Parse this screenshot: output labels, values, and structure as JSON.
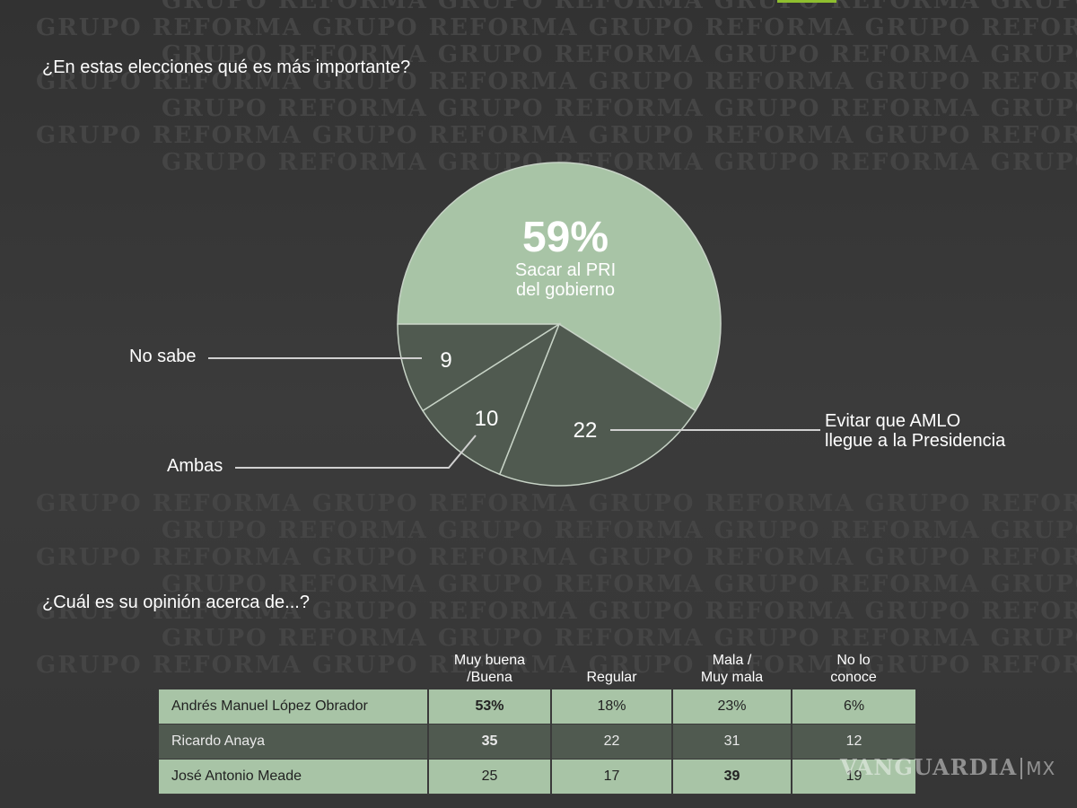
{
  "watermark_text": "GRUPO REFORMA",
  "questions": {
    "q1": "¿En estas elecciones qué es más importante?",
    "q2": "¿Cuál es su opinión acerca de...?"
  },
  "chart_data": [
    {
      "type": "pie",
      "title": "¿En estas elecciones qué es más importante?",
      "slices": [
        {
          "label": "Sacar al PRI del gobierno",
          "value": 59,
          "display": "59%",
          "color": "#a8c4a6"
        },
        {
          "label": "Evitar que AMLO llegue a la Presidencia",
          "value": 22,
          "display": "22",
          "color": "#505a50"
        },
        {
          "label": "Ambas",
          "value": 10,
          "display": "10",
          "color": "#505a50"
        },
        {
          "label": "No sabe",
          "value": 9,
          "display": "9",
          "color": "#505a50"
        }
      ],
      "main_label_lines": [
        "Sacar al PRI",
        "del gobierno"
      ],
      "callout_evitar_lines": [
        "Evitar que AMLO",
        "llegue a la Presidencia"
      ]
    },
    {
      "type": "table",
      "title": "¿Cuál es su opinión acerca de...?",
      "columns": [
        {
          "line1": "Muy buena",
          "line2": "/Buena"
        },
        {
          "line1": "",
          "line2": "Regular"
        },
        {
          "line1": "Mala /",
          "line2": "Muy mala"
        },
        {
          "line1": "No lo",
          "line2": "conoce"
        }
      ],
      "rows": [
        {
          "name": "Andrés Manuel López Obrador",
          "values": [
            "53%",
            "18%",
            "23%",
            "6%"
          ],
          "bold_index": 0
        },
        {
          "name": "Ricardo Anaya",
          "values": [
            "35",
            "22",
            "31",
            "12"
          ],
          "bold_index": 0
        },
        {
          "name": "José Antonio Meade",
          "values": [
            "25",
            "17",
            "39",
            "19"
          ],
          "bold_index": 2
        }
      ]
    }
  ],
  "brand": {
    "name": "VANGUARDIA",
    "suffix": "MX"
  },
  "colors": {
    "background": "#3a3a3a",
    "pie_main": "#a8c4a6",
    "pie_dark": "#505a50",
    "table_light": "#a8c4a6",
    "table_dark": "#505a50",
    "accent": "#8fbf2f"
  }
}
